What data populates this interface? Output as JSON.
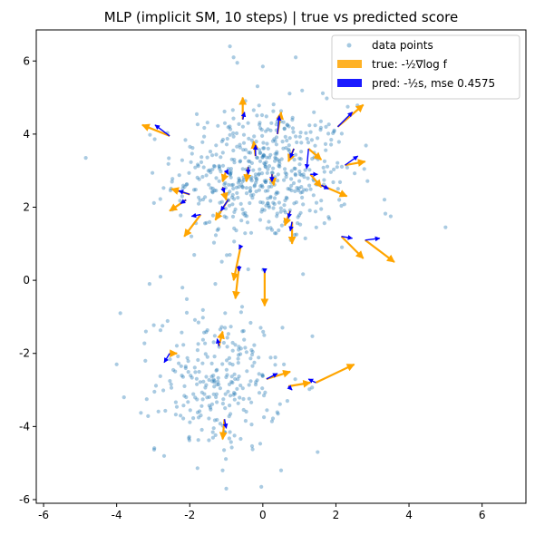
{
  "chart_data": {
    "type": "scatter",
    "title": "MLP (implicit SM, 10 steps) |  true vs predicted score",
    "xlabel": "",
    "ylabel": "",
    "xlim": [
      -6.2,
      7.2
    ],
    "ylim": [
      -6.1,
      6.85
    ],
    "xticks": [
      -6,
      -4,
      -2,
      0,
      2,
      4,
      6
    ],
    "yticks": [
      -6,
      -4,
      -2,
      0,
      2,
      4,
      6
    ],
    "grid": false,
    "legend_position": "top-right",
    "legend": {
      "points_label": "data points",
      "true_label": "true: -½∇log f",
      "pred_label": "pred: -½s, mse 0.4575"
    },
    "colors": {
      "points": "#1f77b4",
      "true_arrows": "#ffa500",
      "pred_arrows": "#0000ff"
    },
    "clusters": [
      {
        "center": [
          0.0,
          2.9
        ],
        "std": [
          1.2,
          0.95
        ],
        "count": 520
      },
      {
        "center": [
          -1.2,
          -2.8
        ],
        "std": [
          0.85,
          0.95
        ],
        "count": 260
      }
    ],
    "extra_points": [
      [
        -0.9,
        6.4
      ],
      [
        -0.8,
        6.1
      ],
      [
        -0.7,
        5.95
      ],
      [
        0.0,
        5.85
      ],
      [
        0.9,
        6.1
      ],
      [
        5.0,
        1.45
      ],
      [
        3.5,
        1.75
      ],
      [
        -3.9,
        -0.9
      ],
      [
        -4.0,
        -2.3
      ],
      [
        -3.8,
        -3.2
      ],
      [
        1.5,
        -4.7
      ],
      [
        -1.0,
        -5.7
      ],
      [
        -1.1,
        -5.2
      ],
      [
        0.5,
        -5.2
      ],
      [
        -3.2,
        -1.4
      ],
      [
        -2.8,
        0.1
      ],
      [
        -3.1,
        -0.1
      ],
      [
        -0.4,
        0.3
      ],
      [
        -1.3,
        -0.1
      ],
      [
        -2.2,
        -0.2
      ]
    ],
    "arrows": [
      {
        "from": [
          -2.55,
          3.95
        ],
        "true": [
          -3.3,
          4.25
        ],
        "pred": [
          -2.95,
          4.25
        ]
      },
      {
        "from": [
          -0.55,
          4.4
        ],
        "true": [
          -0.55,
          5.0
        ],
        "pred": [
          -0.5,
          4.6
        ]
      },
      {
        "from": [
          0.4,
          4.0
        ],
        "true": [
          0.5,
          4.6
        ],
        "pred": [
          0.45,
          4.5
        ]
      },
      {
        "from": [
          2.05,
          4.2
        ],
        "true": [
          2.75,
          4.8
        ],
        "pred": [
          2.45,
          4.6
        ]
      },
      {
        "from": [
          -0.2,
          3.4
        ],
        "true": [
          -0.25,
          3.8
        ],
        "pred": [
          -0.2,
          3.7
        ]
      },
      {
        "from": [
          0.85,
          3.6
        ],
        "true": [
          0.7,
          3.25
        ],
        "pred": [
          0.75,
          3.35
        ]
      },
      {
        "from": [
          1.25,
          3.6
        ],
        "true": [
          1.6,
          3.3
        ],
        "pred": [
          1.2,
          3.05
        ]
      },
      {
        "from": [
          2.25,
          3.15
        ],
        "true": [
          2.8,
          3.25
        ],
        "pred": [
          2.6,
          3.4
        ]
      },
      {
        "from": [
          -1.0,
          3.0
        ],
        "true": [
          -1.1,
          2.7
        ],
        "pred": [
          -0.95,
          2.9
        ]
      },
      {
        "from": [
          -0.4,
          3.1
        ],
        "true": [
          -0.45,
          2.7
        ],
        "pred": [
          -0.4,
          2.9
        ]
      },
      {
        "from": [
          0.25,
          2.9
        ],
        "true": [
          0.3,
          2.6
        ],
        "pred": [
          0.25,
          2.7
        ]
      },
      {
        "from": [
          1.3,
          2.9
        ],
        "true": [
          1.6,
          2.55
        ],
        "pred": [
          1.5,
          2.9
        ]
      },
      {
        "from": [
          1.6,
          2.6
        ],
        "true": [
          2.3,
          2.3
        ],
        "pred": [
          1.8,
          2.5
        ]
      },
      {
        "from": [
          -1.1,
          2.55
        ],
        "true": [
          -1.0,
          2.2
        ],
        "pred": [
          -1.05,
          2.4
        ]
      },
      {
        "from": [
          -2.0,
          2.35
        ],
        "true": [
          -2.5,
          2.5
        ],
        "pred": [
          -2.3,
          2.45
        ]
      },
      {
        "from": [
          -2.1,
          2.2
        ],
        "true": [
          -2.55,
          1.9
        ],
        "pred": [
          -2.25,
          2.1
        ]
      },
      {
        "from": [
          -0.95,
          2.2
        ],
        "true": [
          -1.3,
          1.65
        ],
        "pred": [
          -1.15,
          1.9
        ]
      },
      {
        "from": [
          -1.7,
          1.8
        ],
        "true": [
          -2.15,
          1.2
        ],
        "pred": [
          -1.95,
          1.75
        ]
      },
      {
        "from": [
          0.8,
          1.6
        ],
        "true": [
          0.8,
          1.0
        ],
        "pred": [
          0.75,
          1.35
        ]
      },
      {
        "from": [
          0.75,
          1.9
        ],
        "true": [
          0.6,
          1.5
        ],
        "pred": [
          0.7,
          1.7
        ]
      },
      {
        "from": [
          2.15,
          1.2
        ],
        "true": [
          2.75,
          0.6
        ],
        "pred": [
          2.45,
          1.15
        ]
      },
      {
        "from": [
          2.8,
          1.1
        ],
        "true": [
          3.6,
          0.5
        ],
        "pred": [
          3.2,
          1.15
        ]
      },
      {
        "from": [
          -0.6,
          0.95
        ],
        "true": [
          -0.8,
          0.0
        ],
        "pred": [
          -0.65,
          0.85
        ]
      },
      {
        "from": [
          -0.65,
          0.4
        ],
        "true": [
          -0.75,
          -0.5
        ],
        "pred": [
          -0.65,
          0.25
        ]
      },
      {
        "from": [
          0.05,
          0.25
        ],
        "true": [
          0.05,
          -0.7
        ],
        "pred": [
          0.05,
          0.2
        ]
      },
      {
        "from": [
          -1.2,
          -1.8
        ],
        "true": [
          -1.1,
          -1.4
        ],
        "pred": [
          -1.25,
          -1.6
        ]
      },
      {
        "from": [
          -2.55,
          -2.0
        ],
        "true": [
          -2.35,
          -2.0
        ],
        "pred": [
          -2.7,
          -2.25
        ]
      },
      {
        "from": [
          0.1,
          -2.7
        ],
        "true": [
          0.75,
          -2.5
        ],
        "pred": [
          0.4,
          -2.55
        ]
      },
      {
        "from": [
          1.45,
          -2.8
        ],
        "true": [
          2.5,
          -2.3
        ],
        "pred": [
          1.25,
          -2.7
        ]
      },
      {
        "from": [
          0.7,
          -2.9
        ],
        "true": [
          1.3,
          -2.8
        ],
        "pred": [
          0.8,
          -3.0
        ]
      },
      {
        "from": [
          -1.05,
          -3.8
        ],
        "true": [
          -1.1,
          -4.35
        ],
        "pred": [
          -1.0,
          -4.05
        ]
      }
    ]
  }
}
